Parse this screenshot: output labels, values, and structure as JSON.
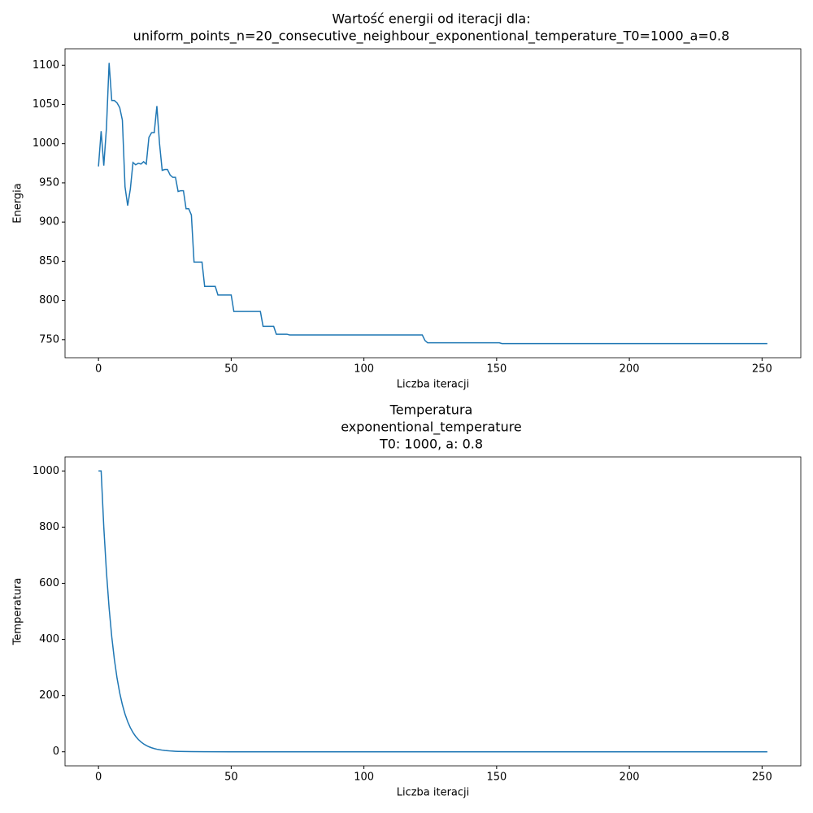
{
  "chart_data": [
    {
      "type": "line",
      "title": [
        "Wartość energii od iteracji dla:",
        "uniform_points_n=20_consecutive_neighbour_exponentional_temperature_T0=1000_a=0.8"
      ],
      "xlabel": "Liczba iteracji",
      "ylabel": "Energia",
      "x": [
        0,
        1,
        2,
        3,
        4,
        5,
        6,
        7,
        8,
        9,
        10,
        11,
        12,
        13,
        14,
        15,
        16,
        17,
        18,
        19,
        20,
        21,
        22,
        23,
        24,
        25,
        26,
        27,
        28,
        29,
        30,
        31,
        32,
        33,
        34,
        35,
        36,
        39,
        40,
        44,
        45,
        50,
        51,
        61,
        62,
        66,
        67,
        71,
        72,
        122,
        123,
        124,
        151,
        152,
        252
      ],
      "values": [
        971,
        1016,
        972,
        1020,
        1103,
        1055,
        1055,
        1052,
        1046,
        1030,
        945,
        921,
        942,
        976,
        973,
        975,
        974,
        977,
        974,
        1008,
        1014,
        1014,
        1048,
        1000,
        966,
        967,
        967,
        960,
        957,
        957,
        939,
        940,
        940,
        917,
        917,
        909,
        849,
        849,
        818,
        818,
        807,
        807,
        786,
        786,
        767,
        767,
        757,
        757,
        756,
        756,
        749,
        746,
        746,
        745,
        745
      ],
      "color": "#1f77b4",
      "xlim": [
        -12.6,
        264.6
      ],
      "xticks": [
        0,
        50,
        100,
        150,
        200,
        250
      ],
      "ylim": [
        727,
        1121
      ],
      "yticks": [
        750,
        800,
        850,
        900,
        950,
        1000,
        1050,
        1100
      ],
      "grid": false
    },
    {
      "type": "line",
      "title": [
        "Temperatura",
        "exponentional_temperature",
        "T0: 1000, a: 0.8"
      ],
      "xlabel": "Liczba iteracji",
      "ylabel": "Temperatura",
      "x": [
        0,
        1,
        2,
        3,
        4,
        5,
        6,
        7,
        8,
        9,
        10,
        11,
        12,
        13,
        14,
        15,
        16,
        17,
        18,
        19,
        20,
        21,
        22,
        23,
        24,
        25,
        26,
        27,
        28,
        29,
        30,
        35,
        40,
        50,
        252
      ],
      "values": [
        1000,
        1000,
        800,
        640,
        512,
        409.6,
        327.7,
        262.1,
        209.7,
        167.8,
        134.2,
        107.4,
        85.9,
        68.7,
        55.0,
        44.0,
        35.2,
        28.1,
        22.5,
        18.0,
        14.4,
        11.5,
        9.2,
        7.4,
        5.9,
        4.7,
        3.8,
        3.0,
        2.4,
        1.9,
        1.5,
        0.5,
        0.2,
        0,
        0
      ],
      "color": "#1f77b4",
      "xlim": [
        -12.6,
        264.6
      ],
      "xticks": [
        0,
        50,
        100,
        150,
        200,
        250
      ],
      "ylim": [
        -50,
        1050
      ],
      "yticks": [
        0,
        200,
        400,
        600,
        800,
        1000
      ],
      "grid": false
    }
  ]
}
